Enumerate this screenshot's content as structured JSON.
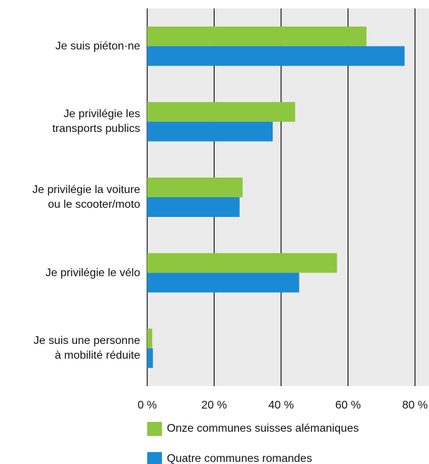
{
  "chart_data": {
    "type": "bar",
    "orientation": "horizontal",
    "categories": [
      "Je suis piéton·ne",
      "Je privilégie les\ntransports publics",
      "Je privilégie la voiture\nou le scooter/moto",
      "Je privilégie le vélo",
      "Je suis une personne\nà mobilité réduite"
    ],
    "series": [
      {
        "name": "Onze communes suisses alémaniques",
        "color": "#8dc63f",
        "values": [
          65.5,
          44.2,
          28.5,
          56.7,
          1.5
        ]
      },
      {
        "name": "Quatre communes romandes",
        "color": "#1a8ad4",
        "values": [
          76.9,
          37.5,
          27.6,
          45.4,
          1.7
        ]
      }
    ],
    "xlim": [
      0,
      80
    ],
    "xticks": [
      {
        "value": 0,
        "label": "0 %"
      },
      {
        "value": 20,
        "label": "20 %"
      },
      {
        "value": 40,
        "label": "40 %"
      },
      {
        "value": 60,
        "label": "60 %"
      },
      {
        "value": 80,
        "label": "80 %"
      }
    ],
    "grid": true
  }
}
